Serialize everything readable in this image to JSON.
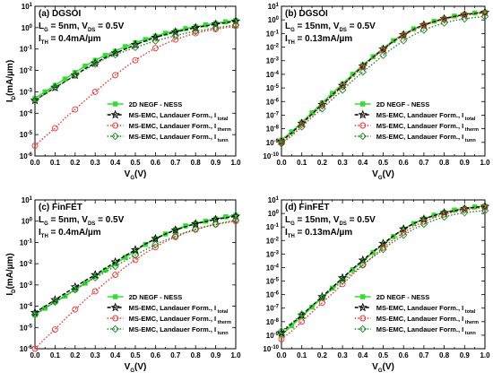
{
  "chart_data": [
    {
      "type": "line",
      "panel": "(a) DGSOI",
      "annotations": [
        {
          "main": "L",
          "sub": "G",
          "rest": " = 5nm, V",
          "sub2": "DS",
          "rest2": " = 0.5V"
        },
        {
          "main": "I",
          "sub": "TH",
          "rest": " = 0.4mA/µm",
          "sub2": "",
          "rest2": ""
        }
      ],
      "xlabel": {
        "main": "V",
        "sub": "G",
        "rest": "(V)"
      },
      "ylabel": {
        "main": "I",
        "sub": "D",
        "rest": "(mA/µm)"
      },
      "xlim": [
        0.0,
        1.0
      ],
      "ylim_exp": [
        -6,
        1
      ],
      "yscale": "log",
      "x_ticks": [
        "0.0",
        "0.1",
        "0.2",
        "0.3",
        "0.4",
        "0.5",
        "0.6",
        "0.7",
        "0.8",
        "0.9",
        "1.0"
      ],
      "y_ticks": [
        -6,
        -5,
        -4,
        -3,
        -2,
        -1,
        0,
        1
      ],
      "legend_position": "lower-right",
      "x": [
        0.0,
        0.05,
        0.1,
        0.15,
        0.2,
        0.25,
        0.3,
        0.35,
        0.4,
        0.45,
        0.5,
        0.55,
        0.6,
        0.65,
        0.7,
        0.75,
        0.8,
        0.85,
        0.9,
        0.95,
        1.0
      ],
      "series": [
        {
          "name": "2D NEGF - NESS",
          "sub": "",
          "marker": "square-filled",
          "color": "#33dd33",
          "line": "solid",
          "values": [
            0.0005,
            0.001,
            0.002,
            0.004,
            0.008,
            0.016,
            0.03,
            0.05,
            0.08,
            0.13,
            0.2,
            0.28,
            0.4,
            0.55,
            0.7,
            0.9,
            1.1,
            1.35,
            1.6,
            1.9,
            2.2
          ]
        },
        {
          "name": "MS-EMC, Landauer Form., I",
          "sub": "total",
          "marker": "star-open",
          "color": "#000000",
          "line": "dash",
          "values": [
            0.0004,
            0.0008,
            0.0016,
            0.003,
            0.006,
            0.012,
            0.022,
            0.04,
            0.065,
            0.1,
            0.16,
            0.24,
            0.35,
            0.48,
            0.62,
            0.8,
            1.0,
            1.2,
            1.45,
            1.7,
            2.0
          ]
        },
        {
          "name": "MS-EMC, Landauer Form., I",
          "sub": "therm",
          "marker": "circle-open",
          "color": "#ee3333",
          "line": "dot",
          "values": [
            3e-06,
            8e-06,
            2e-05,
            6e-05,
            0.00015,
            0.0004,
            0.001,
            0.0025,
            0.006,
            0.014,
            0.03,
            0.06,
            0.11,
            0.18,
            0.28,
            0.4,
            0.55,
            0.7,
            0.85,
            1.0,
            1.2
          ]
        },
        {
          "name": "MS-EMC, Landauer Form., I",
          "sub": "tunn",
          "marker": "diamond-open",
          "color": "#228822",
          "line": "dot",
          "values": [
            0.0004,
            0.0008,
            0.0016,
            0.003,
            0.006,
            0.011,
            0.02,
            0.035,
            0.055,
            0.08,
            0.12,
            0.17,
            0.24,
            0.32,
            0.42,
            0.55,
            0.68,
            0.82,
            0.98,
            1.15,
            1.35
          ]
        }
      ]
    },
    {
      "type": "line",
      "panel": "(b) DGSOI",
      "annotations": [
        {
          "main": "L",
          "sub": "G",
          "rest": " = 15nm, V",
          "sub2": "DS",
          "rest2": " = 0.5V"
        },
        {
          "main": "I",
          "sub": "TH",
          "rest": " = 0.13mA/µm",
          "sub2": "",
          "rest2": ""
        }
      ],
      "xlabel": {
        "main": "V",
        "sub": "G",
        "rest": "(V)"
      },
      "ylabel": {
        "main": "",
        "sub": "",
        "rest": ""
      },
      "xlim": [
        0.0,
        1.0
      ],
      "ylim_exp": [
        -10,
        1
      ],
      "yscale": "log",
      "x_ticks": [
        "0.0",
        "0.1",
        "0.2",
        "0.3",
        "0.4",
        "0.5",
        "0.6",
        "0.7",
        "0.8",
        "0.9",
        "1.0"
      ],
      "y_ticks": [
        -10,
        -9,
        -8,
        -7,
        -6,
        -5,
        -4,
        -3,
        -2,
        -1,
        0,
        1
      ],
      "legend_position": "lower-right",
      "x": [
        0.0,
        0.05,
        0.1,
        0.15,
        0.2,
        0.25,
        0.3,
        0.35,
        0.4,
        0.45,
        0.5,
        0.55,
        0.6,
        0.65,
        0.7,
        0.75,
        0.8,
        0.85,
        0.9,
        0.95,
        1.0
      ],
      "series": [
        {
          "name": "2D NEGF - NESS",
          "sub": "",
          "marker": "square-filled",
          "color": "#33dd33",
          "line": "solid",
          "values": [
            1.5e-09,
            6e-09,
            3e-08,
            1.5e-07,
            8e-07,
            4e-06,
            2e-05,
            0.0001,
            0.0005,
            0.002,
            0.008,
            0.03,
            0.09,
            0.22,
            0.45,
            0.8,
            1.3,
            1.9,
            2.6,
            3.2,
            3.8
          ]
        },
        {
          "name": "MS-EMC, Landauer Form., I",
          "sub": "total",
          "marker": "star-open",
          "color": "#000000",
          "line": "dash",
          "values": [
            1.2e-09,
            5e-09,
            2.5e-08,
            1.2e-07,
            6e-07,
            3e-06,
            1.5e-05,
            8e-05,
            0.0004,
            0.0018,
            0.007,
            0.027,
            0.08,
            0.2,
            0.42,
            0.75,
            1.2,
            1.8,
            2.4,
            3.0,
            3.6
          ]
        },
        {
          "name": "MS-EMC, Landauer Form., I",
          "sub": "therm",
          "marker": "circle-open",
          "color": "#ee3333",
          "line": "dot",
          "values": [
            1e-09,
            4e-09,
            2e-08,
            1e-07,
            5e-07,
            2.5e-06,
            1.3e-05,
            7e-05,
            0.00035,
            0.0016,
            0.006,
            0.024,
            0.07,
            0.18,
            0.38,
            0.68,
            1.1,
            1.6,
            2.2,
            2.8,
            3.3
          ]
        },
        {
          "name": "MS-EMC, Landauer Form., I",
          "sub": "tunn",
          "marker": "diamond-open",
          "color": "#228822",
          "line": "dot",
          "values": [
            8e-10,
            3e-09,
            1.4e-08,
            7e-08,
            3e-07,
            1.5e-06,
            7e-06,
            3.5e-05,
            0.00015,
            0.0006,
            0.0025,
            0.009,
            0.03,
            0.08,
            0.18,
            0.35,
            0.6,
            0.9,
            1.2,
            1.5,
            1.8
          ]
        }
      ]
    },
    {
      "type": "line",
      "panel": "(c) FinFET",
      "annotations": [
        {
          "main": "L",
          "sub": "G",
          "rest": " = 5nm, V",
          "sub2": "DS",
          "rest2": " = 0.5V"
        },
        {
          "main": "I",
          "sub": "TH",
          "rest": " = 0.4mA/µm",
          "sub2": "",
          "rest2": ""
        }
      ],
      "xlabel": {
        "main": "V",
        "sub": "G",
        "rest": "(V)"
      },
      "ylabel": {
        "main": "I",
        "sub": "D",
        "rest": "(mA/µm)"
      },
      "xlim": [
        0.0,
        1.0
      ],
      "ylim_exp": [
        -6,
        1
      ],
      "yscale": "log",
      "x_ticks": [
        "0.0",
        "0.1",
        "0.2",
        "0.3",
        "0.4",
        "0.5",
        "0.6",
        "0.7",
        "0.8",
        "0.9",
        "1.0"
      ],
      "y_ticks": [
        -6,
        -5,
        -4,
        -3,
        -2,
        -1,
        0,
        1
      ],
      "legend_position": "lower-right",
      "x": [
        0.0,
        0.05,
        0.1,
        0.15,
        0.2,
        0.25,
        0.3,
        0.35,
        0.4,
        0.45,
        0.5,
        0.55,
        0.6,
        0.65,
        0.7,
        0.75,
        0.8,
        0.85,
        0.9,
        0.95,
        1.0
      ],
      "series": [
        {
          "name": "2D NEGF - NESS",
          "sub": "",
          "marker": "square-filled",
          "color": "#33dd33",
          "line": "solid",
          "values": [
            4e-05,
            8e-05,
            0.00016,
            0.0003,
            0.0006,
            0.0012,
            0.0025,
            0.005,
            0.01,
            0.02,
            0.04,
            0.08,
            0.15,
            0.25,
            0.4,
            0.6,
            0.8,
            1.0,
            1.3,
            1.6,
            1.9
          ]
        },
        {
          "name": "MS-EMC, Landauer Form., I",
          "sub": "total",
          "marker": "star-open",
          "color": "#000000",
          "line": "dash",
          "values": [
            5e-05,
            0.0001,
            0.0002,
            0.0004,
            0.0008,
            0.0016,
            0.003,
            0.006,
            0.012,
            0.024,
            0.045,
            0.085,
            0.15,
            0.25,
            0.38,
            0.55,
            0.75,
            0.95,
            1.2,
            1.45,
            1.7
          ]
        },
        {
          "name": "MS-EMC, Landauer Form., I",
          "sub": "therm",
          "marker": "circle-open",
          "color": "#ee3333",
          "line": "dot",
          "values": [
            1e-06,
            3e-06,
            8e-06,
            2.5e-05,
            7e-05,
            0.0002,
            0.0005,
            0.0013,
            0.003,
            0.007,
            0.015,
            0.032,
            0.06,
            0.11,
            0.18,
            0.28,
            0.4,
            0.55,
            0.7,
            0.85,
            1.0
          ]
        },
        {
          "name": "MS-EMC, Landauer Form., I",
          "sub": "tunn",
          "marker": "diamond-open",
          "color": "#228822",
          "line": "dot",
          "values": [
            4e-05,
            8e-05,
            0.00016,
            0.0003,
            0.0006,
            0.0012,
            0.0022,
            0.004,
            0.0075,
            0.014,
            0.025,
            0.045,
            0.08,
            0.13,
            0.2,
            0.3,
            0.42,
            0.56,
            0.72,
            0.9,
            1.1
          ]
        }
      ]
    },
    {
      "type": "line",
      "panel": "(d) FinFET",
      "annotations": [
        {
          "main": "L",
          "sub": "G",
          "rest": " = 15nm, V",
          "sub2": "DS",
          "rest2": " = 0.5V"
        },
        {
          "main": "I",
          "sub": "TH",
          "rest": " = 0.13mA/µm",
          "sub2": "",
          "rest2": ""
        }
      ],
      "xlabel": {
        "main": "V",
        "sub": "G",
        "rest": "(V)"
      },
      "ylabel": {
        "main": "",
        "sub": "",
        "rest": ""
      },
      "xlim": [
        0.0,
        1.0
      ],
      "ylim_exp": [
        -10,
        1
      ],
      "yscale": "log",
      "x_ticks": [
        "0.0",
        "0.1",
        "0.2",
        "0.3",
        "0.4",
        "0.5",
        "0.6",
        "0.7",
        "0.8",
        "0.9",
        "1.0"
      ],
      "y_ticks": [
        -10,
        -9,
        -8,
        -7,
        -6,
        -5,
        -4,
        -3,
        -2,
        -1,
        0,
        1
      ],
      "legend_position": "lower-right",
      "x": [
        0.0,
        0.05,
        0.1,
        0.15,
        0.2,
        0.25,
        0.3,
        0.35,
        0.4,
        0.45,
        0.5,
        0.55,
        0.6,
        0.65,
        0.7,
        0.75,
        0.8,
        0.85,
        0.9,
        0.95,
        1.0
      ],
      "series": [
        {
          "name": "2D NEGF - NESS",
          "sub": "",
          "marker": "square-filled",
          "color": "#33dd33",
          "line": "solid",
          "values": [
            1e-09,
            5e-09,
            2.5e-08,
            1.2e-07,
            6e-07,
            3e-06,
            1.5e-05,
            7e-05,
            0.0003,
            0.0013,
            0.005,
            0.02,
            0.07,
            0.18,
            0.4,
            0.75,
            1.2,
            1.8,
            2.4,
            3.0,
            3.5
          ]
        },
        {
          "name": "MS-EMC, Landauer Form., I",
          "sub": "total",
          "marker": "star-open",
          "color": "#000000",
          "line": "dash",
          "values": [
            1.5e-09,
            7e-09,
            3e-08,
            1.5e-07,
            7e-07,
            3.5e-06,
            1.7e-05,
            8e-05,
            0.00035,
            0.0015,
            0.006,
            0.022,
            0.07,
            0.18,
            0.38,
            0.7,
            1.1,
            1.6,
            2.2,
            2.8,
            3.3
          ]
        },
        {
          "name": "MS-EMC, Landauer Form., I",
          "sub": "therm",
          "marker": "circle-open",
          "color": "#ee3333",
          "line": "dot",
          "values": [
            5e-10,
            2e-09,
            1e-08,
            5e-08,
            2.5e-07,
            1.2e-06,
            6e-06,
            3e-05,
            0.00015,
            0.0007,
            0.003,
            0.012,
            0.04,
            0.11,
            0.25,
            0.5,
            0.85,
            1.3,
            1.8,
            2.3,
            2.8
          ]
        },
        {
          "name": "MS-EMC, Landauer Form., I",
          "sub": "tunn",
          "marker": "diamond-open",
          "color": "#228822",
          "line": "dot",
          "values": [
            2e-09,
            8e-09,
            3.5e-08,
            1.5e-07,
            6e-07,
            2.5e-06,
            1e-05,
            4e-05,
            0.00016,
            0.0006,
            0.0022,
            0.008,
            0.025,
            0.07,
            0.16,
            0.32,
            0.55,
            0.85,
            1.15,
            1.4,
            1.6
          ]
        }
      ]
    }
  ]
}
